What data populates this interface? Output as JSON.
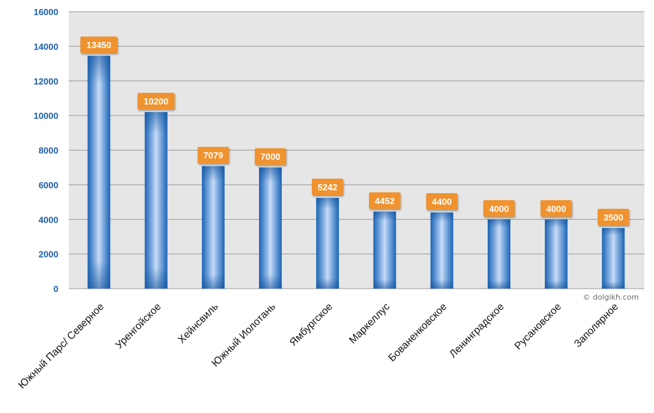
{
  "chart_data": {
    "type": "bar",
    "categories": [
      "Южный Парс/ Северное",
      "Уренгойское",
      "Хейнсвиль",
      "Южный Иолотань",
      "Ямбургское",
      "Маркеллус",
      "Бованенковское",
      "Ленинградское",
      "Русановское",
      "Заполярное"
    ],
    "values": [
      13450,
      10200,
      7079,
      7000,
      5242,
      4452,
      4400,
      4000,
      4000,
      3500
    ],
    "title": "",
    "xlabel": "",
    "ylabel": "",
    "ylim": [
      0,
      16000
    ],
    "yticks": [
      0,
      2000,
      4000,
      6000,
      8000,
      10000,
      12000,
      14000,
      16000
    ],
    "grid": true,
    "legend": "none"
  },
  "colors": {
    "plot_bg": "#e6e6e6",
    "grid": "#9a9a9a",
    "bar_dark": "#1a64b4",
    "bar_light": "#c8dcf6",
    "label_bg": "#f0922e",
    "label_text": "#ffffff",
    "ytick_text": "#1f5fa8"
  },
  "watermark": "© dolgikh.com"
}
